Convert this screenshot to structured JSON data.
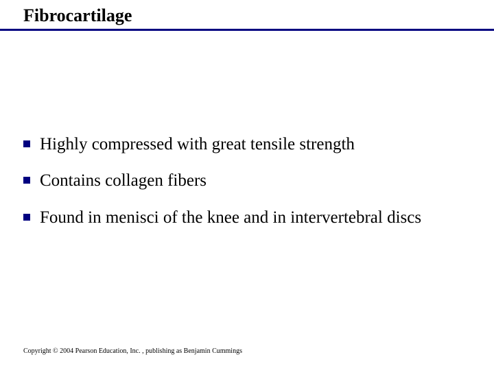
{
  "slide": {
    "title": "Fibrocartilage",
    "title_color": "#000000",
    "title_fontsize": 26,
    "title_fontweight": "bold",
    "rule_color": "#000080",
    "rule_thickness": 3,
    "background_color": "#ffffff",
    "bullets": [
      {
        "text": "Highly compressed with great tensile strength"
      },
      {
        "text": "Contains collagen fibers"
      },
      {
        "text": "Found in menisci of the knee and in intervertebral discs"
      }
    ],
    "bullet_marker_color": "#000080",
    "bullet_marker_size": 10,
    "bullet_fontsize": 25,
    "bullet_color": "#000000",
    "footer": "Copyright © 2004 Pearson Education, Inc. , publishing as Benjamin Cummings",
    "footer_fontsize": 10,
    "footer_color": "#000000",
    "font_family": "Times New Roman"
  }
}
